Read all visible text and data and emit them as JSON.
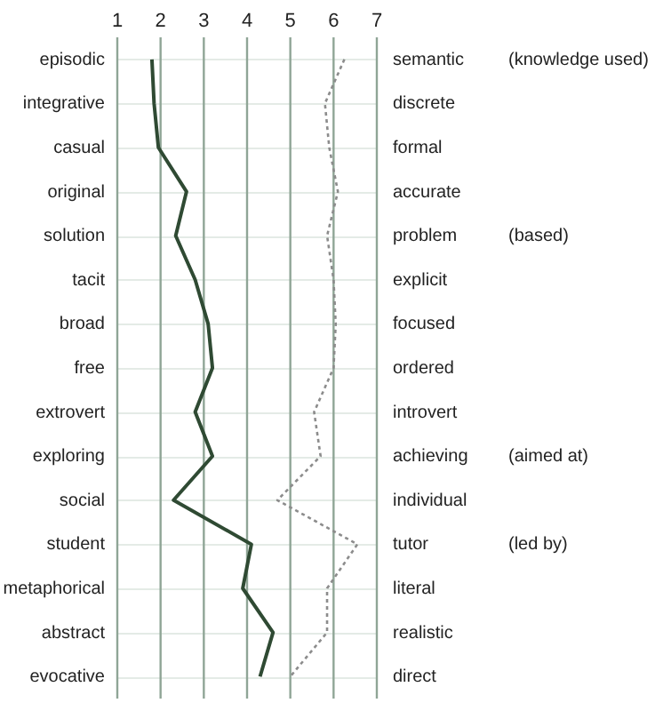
{
  "chart_data": {
    "type": "line",
    "orientation": "horizontal",
    "categories": [
      "episodic",
      "integrative",
      "casual",
      "original",
      "solution",
      "tacit",
      "broad",
      "free",
      "extrovert",
      "exploring",
      "social",
      "student",
      "metaphorical",
      "abstract",
      "evocative"
    ],
    "y2_categories": [
      "semantic",
      "discrete",
      "formal",
      "accurate",
      "problem",
      "explicit",
      "focused",
      "ordered",
      "introvert",
      "achieving",
      "individual",
      "tutor",
      "literal",
      "realistic",
      "direct"
    ],
    "series": [
      {
        "color": "#2f4a33",
        "line_style": "solid",
        "values": [
          1.8,
          1.85,
          1.95,
          2.6,
          2.35,
          2.8,
          3.1,
          3.2,
          2.8,
          3.2,
          2.3,
          4.1,
          3.9,
          4.6,
          4.3
        ]
      },
      {
        "color": "#8c8c8c",
        "line_style": "dotted",
        "values": [
          6.25,
          5.8,
          5.9,
          6.1,
          5.85,
          6.0,
          6.05,
          6.0,
          5.55,
          5.7,
          4.7,
          6.55,
          5.85,
          5.85,
          5.0
        ]
      }
    ],
    "annotations": [
      "(knowledge used)",
      "(based)",
      "(aimed at)",
      "(led by)"
    ],
    "xlim": [
      1,
      7
    ],
    "xticks": [
      1,
      2,
      3,
      4,
      5,
      6,
      7
    ],
    "grid": true,
    "marker": "none"
  }
}
